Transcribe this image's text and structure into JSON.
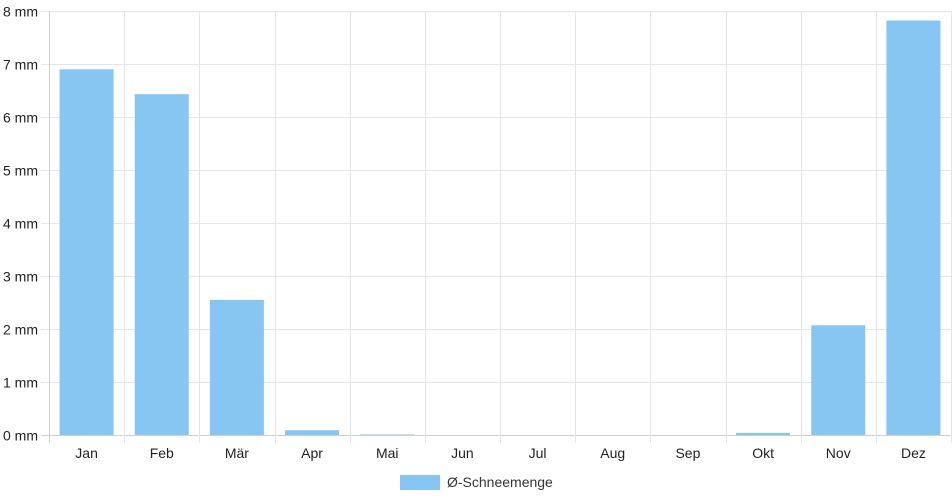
{
  "chart_data": {
    "type": "bar",
    "categories": [
      "Jan",
      "Feb",
      "Mär",
      "Apr",
      "Mai",
      "Jun",
      "Jul",
      "Aug",
      "Sep",
      "Okt",
      "Nov",
      "Dez"
    ],
    "series": [
      {
        "name": "Ø-Schneemenge",
        "values": [
          6.9,
          6.43,
          2.55,
          0.09,
          0.01,
          0,
          0,
          0,
          0,
          0.04,
          2.07,
          7.82
        ],
        "color": "#87c5f2"
      }
    ],
    "y_unit": "mm",
    "yticks": [
      "0 mm",
      "1 mm",
      "2 mm",
      "3 mm",
      "4 mm",
      "5 mm",
      "6 mm",
      "7 mm",
      "8 mm"
    ],
    "ylim": [
      0,
      8
    ],
    "grid": true,
    "legend_position": "bottom"
  }
}
